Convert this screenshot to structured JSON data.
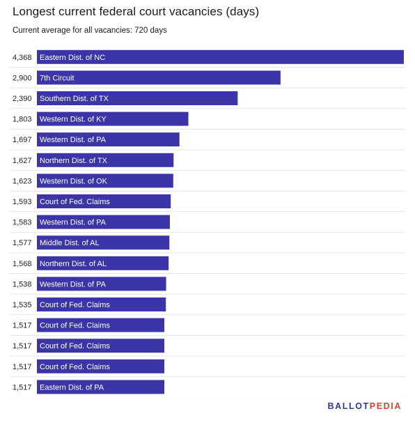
{
  "header": {
    "title": "Longest current federal court vacancies (days)",
    "subtitle": "Current average for all vacancies: 720 days"
  },
  "brand": {
    "part1": "BALLOT",
    "part2": "PEDIA",
    "color1": "#2f3790",
    "color2": "#d2432f"
  },
  "colors": {
    "bar": "#3c35a8",
    "row_divider": "#e4e4e4"
  },
  "chart_data": {
    "type": "bar",
    "orientation": "horizontal",
    "title": "Longest current federal court vacancies (days)",
    "subtitle": "Current average for all vacancies: 720 days",
    "xlim": [
      0,
      4368
    ],
    "grid": false,
    "categories": [
      "Eastern Dist. of NC",
      "7th Circuit",
      "Southern Dist. of TX",
      "Western Dist. of KY",
      "Western Dist. of PA",
      "Northern Dist. of TX",
      "Western Dist. of OK",
      "Court of Fed. Claims",
      "Western Dist. of PA",
      "Middle Dist. of AL",
      "Northern Dist. of AL",
      "Western Dist. of PA",
      "Court of Fed. Claims",
      "Court of Fed. Claims",
      "Court of Fed. Claims",
      "Court of Fed. Claims",
      "Eastern Dist. of PA"
    ],
    "values": [
      4368,
      2900,
      2390,
      1803,
      1697,
      1627,
      1623,
      1593,
      1583,
      1577,
      1568,
      1538,
      1535,
      1517,
      1517,
      1517,
      1517
    ],
    "value_labels": [
      "4,368",
      "2,900",
      "2,390",
      "1,803",
      "1,697",
      "1,627",
      "1,623",
      "1,593",
      "1,583",
      "1,577",
      "1,568",
      "1,538",
      "1,535",
      "1,517",
      "1,517",
      "1,517",
      "1,517"
    ]
  }
}
